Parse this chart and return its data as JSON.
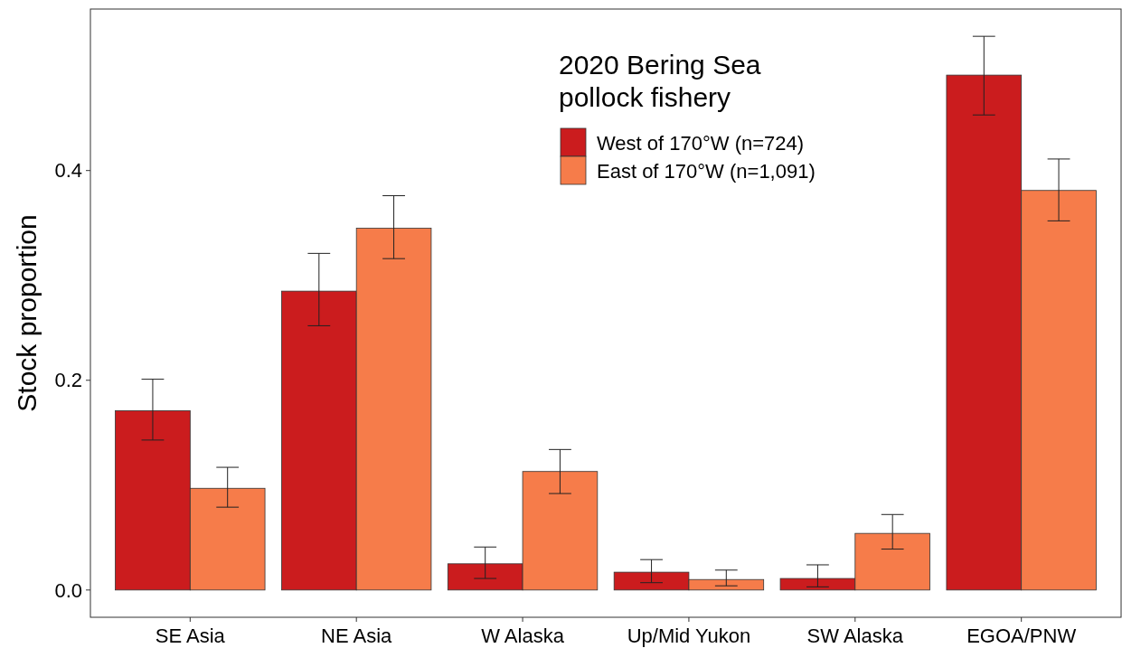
{
  "chart_data": {
    "type": "bar",
    "ylabel": "Stock proportion",
    "legend_title": "2020 Bering Sea pollock fishery",
    "legend": "top right",
    "grid": false,
    "categories": [
      "SE Asia",
      "NE Asia",
      "W Alaska",
      "Up/Mid Yukon",
      "SW Alaska",
      "EGOA/PNW"
    ],
    "ylim": [
      -0.026,
      0.554
    ],
    "yticks": [
      {
        "value": 0,
        "label": "0.0"
      },
      {
        "value": 0.2,
        "label": "0.2"
      },
      {
        "value": 0.4,
        "label": "0.4"
      }
    ],
    "series": [
      {
        "name": "West of 170°W (n=724)",
        "color": "#cb1c1e",
        "values": [
          0.171,
          0.285,
          0.025,
          0.017,
          0.011,
          0.491
        ],
        "errors": [
          [
            0.143,
            0.201
          ],
          [
            0.252,
            0.321
          ],
          [
            0.011,
            0.041
          ],
          [
            0.007,
            0.029
          ],
          [
            0.003,
            0.024
          ],
          [
            0.453,
            0.528
          ]
        ]
      },
      {
        "name": "East of 170°W (n=1,091)",
        "color": "#f67c4a",
        "values": [
          0.097,
          0.345,
          0.113,
          0.01,
          0.054,
          0.381
        ],
        "errors": [
          [
            0.079,
            0.117
          ],
          [
            0.316,
            0.376
          ],
          [
            0.092,
            0.134
          ],
          [
            0.004,
            0.019
          ],
          [
            0.039,
            0.072
          ],
          [
            0.352,
            0.411
          ]
        ]
      }
    ]
  }
}
